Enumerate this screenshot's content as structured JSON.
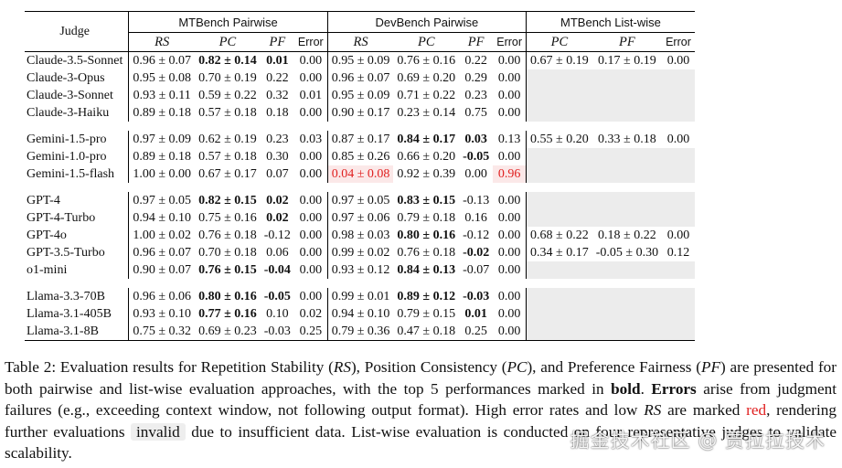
{
  "table": {
    "judge_header": "Judge",
    "groups": [
      "MTBench Pairwise",
      "DevBench Pairwise",
      "MTBench List-wise"
    ],
    "sub_headers": {
      "pairwise": [
        "RS",
        "PC",
        "PF",
        "Error"
      ],
      "listwise": [
        "PC",
        "PF",
        "Error"
      ]
    },
    "sections": [
      {
        "rows": [
          {
            "judge": "Claude-3.5-Sonnet",
            "mt": [
              "0.96 ± 0.07",
              "0.82 ± 0.14",
              "0.01",
              "0.00"
            ],
            "mt_bold": [
              false,
              true,
              true,
              false
            ],
            "dev": [
              "0.95 ± 0.09",
              "0.76 ± 0.16",
              "0.22",
              "0.00"
            ],
            "dev_bold": [
              false,
              false,
              false,
              false
            ],
            "lw": [
              "0.67 ± 0.19",
              "0.17 ± 0.19",
              "0.00"
            ]
          },
          {
            "judge": "Claude-3-Opus",
            "mt": [
              "0.95 ± 0.08",
              "0.70 ± 0.19",
              "0.22",
              "0.00"
            ],
            "mt_bold": [
              false,
              false,
              false,
              false
            ],
            "dev": [
              "0.96 ± 0.07",
              "0.69 ± 0.20",
              "0.29",
              "0.00"
            ],
            "dev_bold": [
              false,
              false,
              false,
              false
            ],
            "lw": null
          },
          {
            "judge": "Claude-3-Sonnet",
            "mt": [
              "0.93 ± 0.11",
              "0.59 ± 0.22",
              "0.32",
              "0.01"
            ],
            "mt_bold": [
              false,
              false,
              false,
              false
            ],
            "dev": [
              "0.95 ± 0.09",
              "0.71 ± 0.22",
              "0.23",
              "0.00"
            ],
            "dev_bold": [
              false,
              false,
              false,
              false
            ],
            "lw": null
          },
          {
            "judge": "Claude-3-Haiku",
            "mt": [
              "0.89 ± 0.18",
              "0.57 ± 0.18",
              "0.18",
              "0.00"
            ],
            "mt_bold": [
              false,
              false,
              false,
              false
            ],
            "dev": [
              "0.90 ± 0.17",
              "0.23 ± 0.14",
              "0.75",
              "0.00"
            ],
            "dev_bold": [
              false,
              false,
              false,
              false
            ],
            "lw": null
          }
        ]
      },
      {
        "rows": [
          {
            "judge": "Gemini-1.5-pro",
            "mt": [
              "0.97 ± 0.09",
              "0.62 ± 0.19",
              "0.23",
              "0.03"
            ],
            "mt_bold": [
              false,
              false,
              false,
              false
            ],
            "dev": [
              "0.87 ± 0.17",
              "0.84 ± 0.17",
              "0.03",
              "0.13"
            ],
            "dev_bold": [
              false,
              true,
              true,
              false
            ],
            "lw": [
              "0.55 ± 0.20",
              "0.33 ± 0.18",
              "0.00"
            ]
          },
          {
            "judge": "Gemini-1.0-pro",
            "mt": [
              "0.89 ± 0.18",
              "0.57 ± 0.18",
              "0.30",
              "0.00"
            ],
            "mt_bold": [
              false,
              false,
              false,
              false
            ],
            "dev": [
              "0.85 ± 0.26",
              "0.66 ± 0.20",
              "-0.05",
              "0.00"
            ],
            "dev_bold": [
              false,
              false,
              true,
              false
            ],
            "lw": null
          },
          {
            "judge": "Gemini-1.5-flash",
            "mt": [
              "1.00 ± 0.00",
              "0.67 ± 0.17",
              "0.07",
              "0.00"
            ],
            "mt_bold": [
              false,
              false,
              false,
              false
            ],
            "dev": [
              "0.04 ± 0.08",
              "0.92 ± 0.39",
              "0.00",
              "0.96"
            ],
            "dev_bold": [
              false,
              false,
              false,
              false
            ],
            "dev_red": [
              true,
              false,
              false,
              true
            ],
            "lw": null
          }
        ]
      },
      {
        "rows": [
          {
            "judge": "GPT-4",
            "mt": [
              "0.97 ± 0.05",
              "0.82 ± 0.15",
              "0.02",
              "0.00"
            ],
            "mt_bold": [
              false,
              true,
              true,
              false
            ],
            "dev": [
              "0.97 ± 0.05",
              "0.83 ± 0.15",
              "-0.13",
              "0.00"
            ],
            "dev_bold": [
              false,
              true,
              false,
              false
            ],
            "lw": null
          },
          {
            "judge": "GPT-4-Turbo",
            "mt": [
              "0.94 ± 0.10",
              "0.75 ± 0.16",
              "0.02",
              "0.00"
            ],
            "mt_bold": [
              false,
              false,
              true,
              false
            ],
            "dev": [
              "0.97 ± 0.06",
              "0.79 ± 0.18",
              "0.16",
              "0.00"
            ],
            "dev_bold": [
              false,
              false,
              false,
              false
            ],
            "lw": null
          },
          {
            "judge": "GPT-4o",
            "mt": [
              "1.00 ± 0.02",
              "0.76 ± 0.18",
              "-0.12",
              "0.00"
            ],
            "mt_bold": [
              false,
              false,
              false,
              false
            ],
            "dev": [
              "0.98 ± 0.03",
              "0.80 ± 0.16",
              "-0.12",
              "0.00"
            ],
            "dev_bold": [
              false,
              true,
              false,
              false
            ],
            "lw": [
              "0.68 ± 0.22",
              "0.18 ± 0.22",
              "0.00"
            ]
          },
          {
            "judge": "GPT-3.5-Turbo",
            "mt": [
              "0.96 ± 0.07",
              "0.70 ± 0.18",
              "0.06",
              "0.00"
            ],
            "mt_bold": [
              false,
              false,
              false,
              false
            ],
            "dev": [
              "0.99 ± 0.02",
              "0.76 ± 0.18",
              "-0.02",
              "0.00"
            ],
            "dev_bold": [
              false,
              false,
              true,
              false
            ],
            "lw": [
              "0.34 ± 0.17",
              "-0.05 ± 0.30",
              "0.12"
            ]
          },
          {
            "judge": "o1-mini",
            "mt": [
              "0.90 ± 0.07",
              "0.76 ± 0.15",
              "-0.04",
              "0.00"
            ],
            "mt_bold": [
              false,
              true,
              true,
              false
            ],
            "dev": [
              "0.93 ± 0.12",
              "0.84 ± 0.13",
              "-0.07",
              "0.00"
            ],
            "dev_bold": [
              false,
              true,
              false,
              false
            ],
            "lw": null
          }
        ]
      },
      {
        "rows": [
          {
            "judge": "Llama-3.3-70B",
            "mt": [
              "0.96 ± 0.06",
              "0.80 ± 0.16",
              "-0.05",
              "0.00"
            ],
            "mt_bold": [
              false,
              true,
              true,
              false
            ],
            "dev": [
              "0.99 ± 0.01",
              "0.89 ± 0.12",
              "-0.03",
              "0.00"
            ],
            "dev_bold": [
              false,
              true,
              true,
              false
            ],
            "lw": null
          },
          {
            "judge": "Llama-3.1-405B",
            "mt": [
              "0.93 ± 0.10",
              "0.77 ± 0.16",
              "0.10",
              "0.02"
            ],
            "mt_bold": [
              false,
              true,
              false,
              false
            ],
            "dev": [
              "0.94 ± 0.10",
              "0.79 ± 0.15",
              "0.01",
              "0.00"
            ],
            "dev_bold": [
              false,
              false,
              true,
              false
            ],
            "lw": null
          },
          {
            "judge": "Llama-3.1-8B",
            "mt": [
              "0.75 ± 0.32",
              "0.69 ± 0.23",
              "-0.03",
              "0.25"
            ],
            "mt_bold": [
              false,
              false,
              false,
              false
            ],
            "dev": [
              "0.79 ± 0.36",
              "0.47 ± 0.18",
              "0.25",
              "0.00"
            ],
            "dev_bold": [
              false,
              false,
              false,
              false
            ],
            "lw": null
          }
        ]
      }
    ]
  },
  "caption": {
    "p1": "Table 2: Evaluation results for Repetition Stability (",
    "rs": "RS",
    "p2": "), Position Consistency (",
    "pc": "PC",
    "p3": "), and Preference Fairness (",
    "pf": "PF",
    "p4": ") are presented for both pairwise and list-wise evaluation approaches, with the top 5 performances marked in ",
    "bold_word": "bold",
    "p5": ". ",
    "errors_word": "Errors",
    "p6": " arise from judgment failures (e.g., exceeding context window, not following output format). High error rates and low ",
    "rs2": "RS",
    "p7": " are marked ",
    "red_word": "red",
    "p8": ", rendering further evaluations ",
    "invalid_word": "invalid",
    "p9": " due to insufficient data. List-wise evaluation is conducted on four representative judges to validate scalability."
  },
  "watermark": "掘金技术社区 @ 贾拉拉技术",
  "colors": {
    "red": "#e02020",
    "grey_fill": "#ececec",
    "red_fill": "#fbe8e8"
  }
}
